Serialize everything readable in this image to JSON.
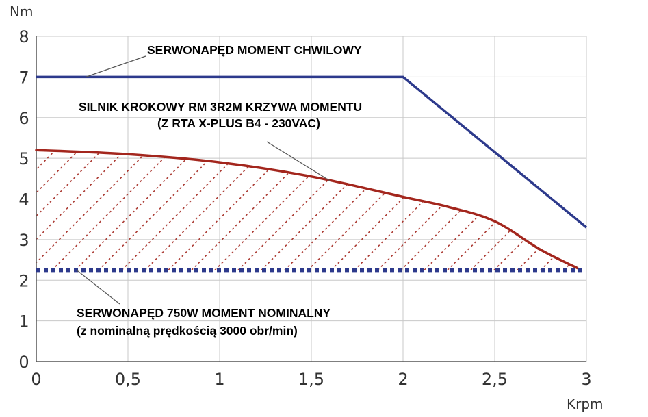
{
  "chart_data": {
    "type": "line",
    "xlabel": "Krpm",
    "ylabel": "Nm",
    "xlim": [
      0,
      3
    ],
    "ylim": [
      0,
      8
    ],
    "x_ticks": [
      "0",
      "0,5",
      "1",
      "1,5",
      "2",
      "2,5",
      "3"
    ],
    "y_ticks": [
      "0",
      "1",
      "2",
      "3",
      "4",
      "5",
      "6",
      "7",
      "8"
    ],
    "grid": true,
    "colors": {
      "servo": "#2d3a8c",
      "stepper": "#a3261d",
      "grid": "#c8c8c8",
      "axis": "#555555"
    },
    "series": [
      {
        "x": [
          0,
          2,
          3
        ],
        "y": [
          7.0,
          7.0,
          3.3
        ]
      },
      {
        "x": [
          0,
          0.5,
          1.0,
          1.5,
          2.0,
          2.25,
          2.5,
          2.75,
          2.95
        ],
        "y": [
          5.2,
          5.1,
          4.9,
          4.55,
          4.05,
          3.8,
          3.45,
          2.75,
          2.3
        ],
        "hatched": true
      },
      {
        "x": [
          0,
          3
        ],
        "y": [
          2.25,
          2.25
        ],
        "style": "dotted"
      }
    ],
    "annotations": [
      {
        "id": "servo_peak",
        "text": "SERWONAPĘD MOMENT CHWILOWY",
        "color": "#2d3a8c",
        "points_to": [
          0.27,
          7.0
        ]
      },
      {
        "id": "stepper_1",
        "text": "SILNIK KROKOWY RM 3R2M KRZYWA MOMENTU",
        "color": "#a3261d",
        "points_to": [
          1.6,
          4.45
        ]
      },
      {
        "id": "stepper_2",
        "text": "(Z RTA X-PLUS B4 - 230VAC)",
        "color": "#a3261d"
      },
      {
        "id": "servo_nom_1",
        "text": "SERWONAPĘD 750W MOMENT NOMINALNY",
        "color": "#2d3a8c",
        "points_to": [
          0.22,
          2.25
        ]
      },
      {
        "id": "servo_nom_2",
        "text": "(z nominalną prędkością 3000 obr/min)",
        "color": "#2d3a8c"
      }
    ]
  }
}
